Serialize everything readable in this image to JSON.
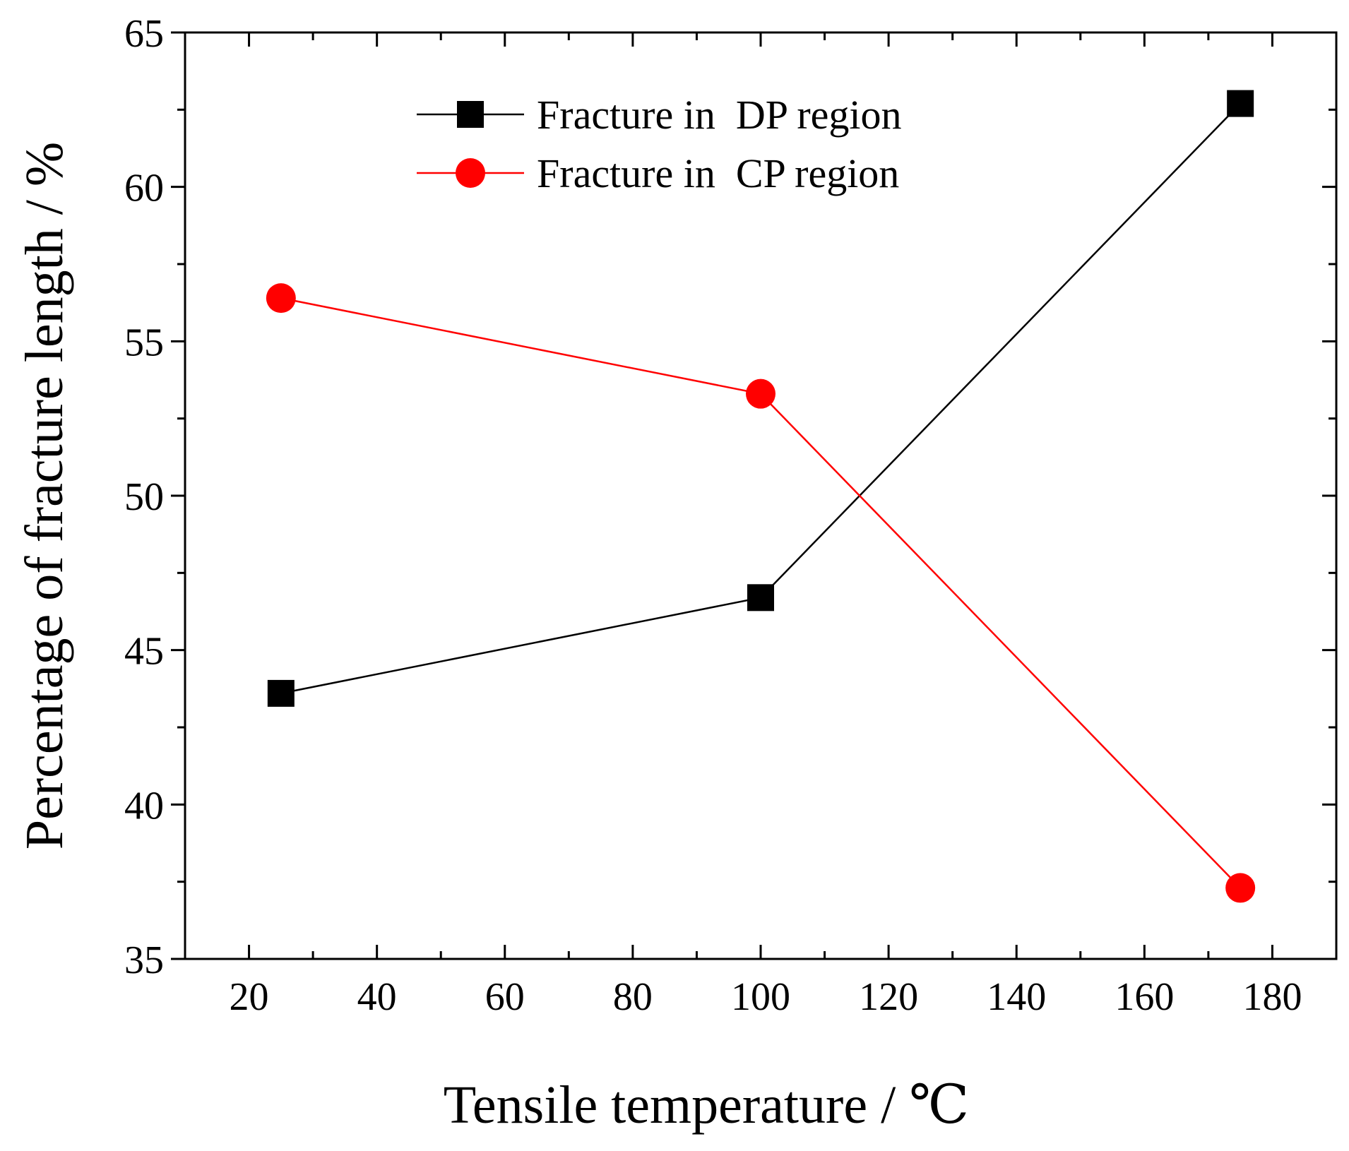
{
  "chart_data": {
    "type": "line",
    "title": "",
    "xlabel": "Tensile temperature / ℃",
    "ylabel": "Percentage of fracture length / %",
    "xlim": [
      10,
      190
    ],
    "ylim": [
      35,
      65
    ],
    "xticks": [
      20,
      40,
      60,
      80,
      100,
      120,
      140,
      160,
      180
    ],
    "xtick_labels": [
      "20",
      "40",
      "60",
      "80",
      "100",
      "120",
      "140",
      "160",
      "180"
    ],
    "yticks": [
      35,
      40,
      45,
      50,
      55,
      60,
      65
    ],
    "ytick_labels": [
      "35",
      "40",
      "45",
      "50",
      "55",
      "60",
      "65"
    ],
    "grid": false,
    "legend_position": "top-center",
    "series": [
      {
        "name": "Fracture in  DP region",
        "marker": "square",
        "color": "#000000",
        "x": [
          25,
          100,
          175
        ],
        "values": [
          43.6,
          46.7,
          62.7
        ]
      },
      {
        "name": "Fracture in  CP region",
        "marker": "circle",
        "color": "#ff0000",
        "x": [
          25,
          100,
          175
        ],
        "values": [
          56.4,
          53.3,
          37.3
        ]
      }
    ]
  }
}
